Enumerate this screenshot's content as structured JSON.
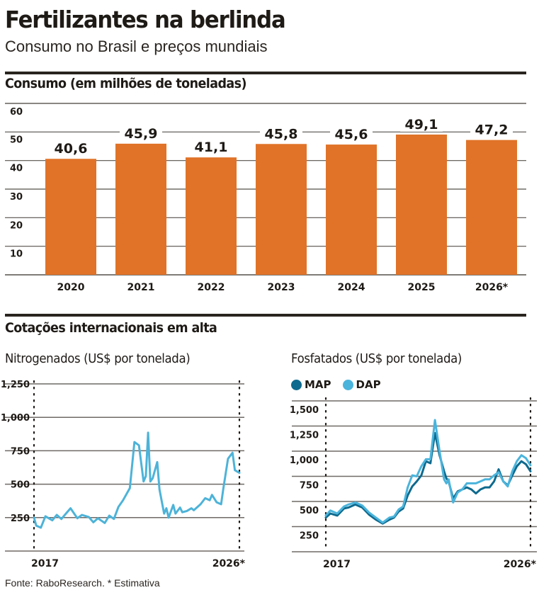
{
  "header": {
    "title": "Fertilizantes na berlinda",
    "subtitle": "Consumo no Brasil e preços mundiais"
  },
  "sections": {
    "consumo_title": "Consumo (em milhões de toneladas)",
    "cotacoes_title": "Cotações internacionais em alta"
  },
  "colors": {
    "bar": "#e07328",
    "nitrogen_line": "#4db3d8",
    "map": "#0e6a8e",
    "dap": "#4ab4dc",
    "grid": "#8a8682",
    "text": "#1e1a16"
  },
  "footer": "Fonte: RaboResearch. * Estimativa",
  "chart_data": [
    {
      "id": "consumo",
      "type": "bar",
      "title": "Consumo (em milhões de toneladas)",
      "xlabel": "",
      "ylabel": "",
      "categories": [
        "2020",
        "2021",
        "2022",
        "2023",
        "2024",
        "2025",
        "2026*"
      ],
      "values": [
        40.6,
        45.9,
        41.1,
        45.8,
        45.6,
        49.1,
        47.2
      ],
      "data_labels": [
        "40,6",
        "45,9",
        "41,1",
        "45,8",
        "45,6",
        "49,1",
        "47,2"
      ],
      "yticks": [
        10,
        20,
        30,
        40,
        50,
        60
      ],
      "ytick_labels": [
        "10",
        "20",
        "30",
        "40",
        "50",
        "60"
      ],
      "ylim": [
        0,
        60
      ],
      "grid": true
    },
    {
      "id": "nitrogenados",
      "type": "line",
      "title": "Nitrogenados (US$ por tonelada)",
      "x_range": [
        2017,
        2026
      ],
      "xtick_labels": [
        "2017",
        "2026*"
      ],
      "yticks": [
        250,
        500,
        750,
        1000,
        1250
      ],
      "ytick_labels": [
        "250",
        "500",
        "750",
        "1,000",
        "1,250"
      ],
      "ylim": [
        0,
        1250
      ],
      "grid": true,
      "series": [
        {
          "name": "Nitrogenados",
          "x": [
            2017.0,
            2017.1,
            2017.3,
            2017.5,
            2017.8,
            2018.0,
            2018.2,
            2018.4,
            2018.6,
            2018.9,
            2019.1,
            2019.4,
            2019.6,
            2019.8,
            2020.1,
            2020.3,
            2020.5,
            2020.7,
            2020.9,
            2021.1,
            2021.2,
            2021.4,
            2021.6,
            2021.8,
            2021.9,
            2022.0,
            2022.1,
            2022.2,
            2022.4,
            2022.5,
            2022.7,
            2022.8,
            2022.9,
            2023.1,
            2023.2,
            2023.4,
            2023.5,
            2023.7,
            2023.9,
            2024.0,
            2024.3,
            2024.5,
            2024.7,
            2024.8,
            2025.0,
            2025.2,
            2025.3,
            2025.5,
            2025.7,
            2025.8,
            2026.0
          ],
          "y": [
            250,
            190,
            175,
            260,
            230,
            270,
            240,
            280,
            320,
            245,
            270,
            255,
            215,
            245,
            210,
            265,
            240,
            330,
            380,
            440,
            470,
            815,
            790,
            520,
            560,
            885,
            520,
            545,
            665,
            460,
            280,
            320,
            250,
            345,
            280,
            325,
            290,
            300,
            320,
            305,
            350,
            395,
            380,
            420,
            365,
            350,
            470,
            690,
            735,
            605,
            585
          ]
        }
      ]
    },
    {
      "id": "fosfatados",
      "type": "line",
      "title": "Fosfatados (US$ por tonelada)",
      "x_range": [
        2017,
        2026
      ],
      "xtick_labels": [
        "2017",
        "2026*"
      ],
      "yticks": [
        250,
        500,
        750,
        1000,
        1250,
        1500
      ],
      "ytick_labels": [
        "250",
        "500",
        "750",
        "1,000",
        "1,250",
        "1,500"
      ],
      "ylim": [
        0,
        1500
      ],
      "grid": true,
      "legend": [
        "MAP",
        "DAP"
      ],
      "legend_position": "top-left",
      "series": [
        {
          "name": "MAP",
          "x": [
            2017.0,
            2017.2,
            2017.5,
            2017.8,
            2018.0,
            2018.3,
            2018.6,
            2018.9,
            2019.2,
            2019.5,
            2019.8,
            2020.0,
            2020.2,
            2020.4,
            2020.6,
            2020.8,
            2021.0,
            2021.2,
            2021.4,
            2021.6,
            2021.8,
            2022.0,
            2022.2,
            2022.3,
            2022.4,
            2022.6,
            2022.8,
            2023.0,
            2023.2,
            2023.4,
            2023.6,
            2023.8,
            2024.0,
            2024.2,
            2024.4,
            2024.6,
            2024.8,
            2025.0,
            2025.2,
            2025.4,
            2025.6,
            2025.8,
            2026.0
          ],
          "y": [
            340,
            380,
            360,
            430,
            440,
            470,
            440,
            370,
            320,
            280,
            320,
            340,
            400,
            430,
            560,
            650,
            700,
            760,
            900,
            880,
            1180,
            960,
            800,
            730,
            700,
            530,
            600,
            620,
            640,
            620,
            580,
            620,
            640,
            640,
            700,
            820,
            700,
            660,
            760,
            850,
            900,
            870,
            800
          ]
        },
        {
          "name": "DAP",
          "x": [
            2017.0,
            2017.2,
            2017.5,
            2017.8,
            2018.0,
            2018.3,
            2018.6,
            2018.9,
            2019.2,
            2019.5,
            2019.8,
            2020.0,
            2020.2,
            2020.4,
            2020.6,
            2020.8,
            2021.0,
            2021.2,
            2021.4,
            2021.6,
            2021.8,
            2022.0,
            2022.2,
            2022.3,
            2022.4,
            2022.6,
            2022.8,
            2023.0,
            2023.2,
            2023.4,
            2023.6,
            2023.8,
            2024.0,
            2024.2,
            2024.4,
            2024.6,
            2024.8,
            2025.0,
            2025.2,
            2025.4,
            2025.6,
            2025.8,
            2026.0
          ],
          "y": [
            360,
            410,
            380,
            450,
            470,
            490,
            460,
            390,
            340,
            290,
            340,
            350,
            420,
            450,
            640,
            760,
            750,
            850,
            920,
            920,
            1310,
            1000,
            720,
            680,
            720,
            490,
            590,
            620,
            680,
            680,
            680,
            700,
            720,
            720,
            760,
            790,
            700,
            650,
            800,
            900,
            960,
            930,
            860
          ]
        }
      ]
    }
  ]
}
